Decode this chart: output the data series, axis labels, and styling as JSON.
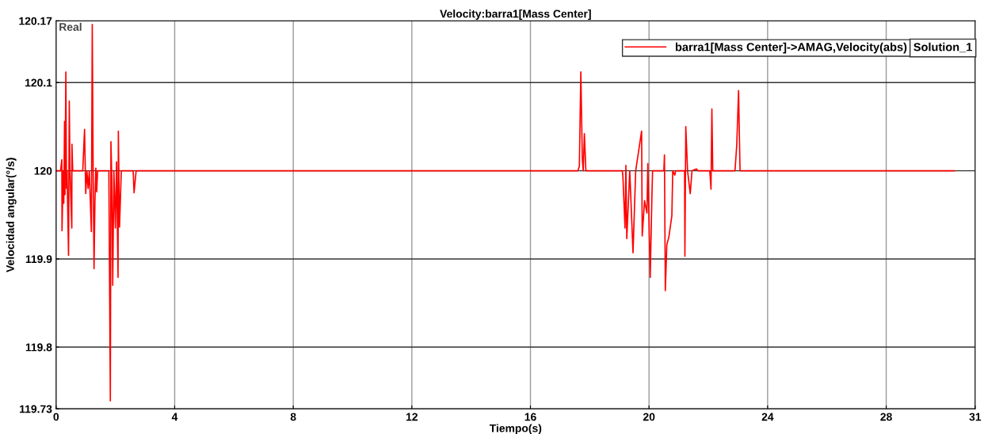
{
  "chart_data": {
    "type": "line",
    "title": "Velocity:barra1[Mass Center]",
    "xlabel": "Tiempo(s)",
    "ylabel": "Velocidad angular(°/s)",
    "annotations": [
      "Real",
      "Solution_1"
    ],
    "series": [
      {
        "name": "barra1[Mass Center]->AMAG,Velocity(abs)",
        "color": "#ff0000",
        "x": [
          0,
          0.15,
          0.195,
          0.2,
          0.24,
          0.26,
          0.285,
          0.3,
          0.31,
          0.33,
          0.35,
          0.37,
          0.42,
          0.445,
          0.47,
          0.53,
          0.535,
          0.56,
          0.6,
          0.9,
          0.96,
          1.0,
          1.04,
          1.08,
          1.12,
          1.19,
          1.22,
          1.25,
          1.28,
          1.31,
          1.34,
          1.37,
          1.4,
          1.45,
          1.78,
          1.83,
          1.85,
          1.88,
          1.91,
          1.95,
          2.0,
          2.04,
          2.09,
          2.1,
          2.14,
          2.2,
          2.6,
          2.63,
          2.7,
          17.6,
          17.65,
          17.7,
          17.75,
          17.78,
          17.82,
          17.87,
          19.1,
          19.12,
          19.19,
          19.22,
          19.25,
          19.35,
          19.46,
          19.55,
          19.75,
          19.77,
          19.85,
          19.93,
          19.96,
          20.04,
          20.1,
          20.12,
          20.5,
          20.52,
          20.55,
          20.6,
          20.67,
          20.77,
          20.8,
          20.87,
          20.9,
          21.2,
          21.21,
          21.24,
          21.3,
          21.39,
          21.45,
          21.6,
          21.65,
          22.05,
          22.09,
          22.12,
          22.15,
          22.9,
          22.96,
          23.02,
          23.07,
          30.3
        ],
        "values": [
          120,
          120,
          120.0125,
          119.932,
          120.0,
          119.963,
          120.056,
          119.973,
          120.03,
          120.112,
          119.98,
          120.0,
          119.904,
          120.079,
          120.0,
          119.935,
          120.03,
          120.0,
          120,
          120,
          120.047,
          119.974,
          120.0,
          119.98,
          120.0,
          119.931,
          120.166,
          120.0,
          119.889,
          119.965,
          120.003,
          119.976,
          120.0,
          120,
          120,
          119.739,
          120.033,
          119.99,
          119.87,
          120.0,
          119.935,
          120.01,
          119.879,
          120.045,
          119.936,
          120.0,
          120,
          119.975,
          120,
          120,
          120.005,
          120.112,
          120.014,
          120.0,
          120.042,
          120,
          120,
          119.993,
          119.935,
          120.006,
          119.923,
          120.0,
          119.907,
          120.0,
          120.045,
          119.926,
          119.966,
          119.952,
          120.008,
          119.879,
          119.975,
          120,
          120,
          120.018,
          119.864,
          119.916,
          119.925,
          119.949,
          120.0,
          119.995,
          120,
          120,
          119.903,
          120.05,
          120.0,
          119.974,
          120,
          120.002,
          120,
          120,
          119.979,
          120.07,
          120,
          120,
          120.03,
          120.091,
          120,
          120
        ]
      }
    ],
    "xlim": [
      0,
      31
    ],
    "xticks": [
      0,
      4,
      8,
      12,
      16,
      20,
      24,
      28,
      31
    ],
    "ylim": [
      119.73,
      120.17
    ],
    "yticks": [
      119.73,
      119.8,
      119.9,
      120,
      120.1,
      120.17
    ],
    "grid": true,
    "legend": "top right",
    "marker": "none",
    "line_style": "solid"
  }
}
